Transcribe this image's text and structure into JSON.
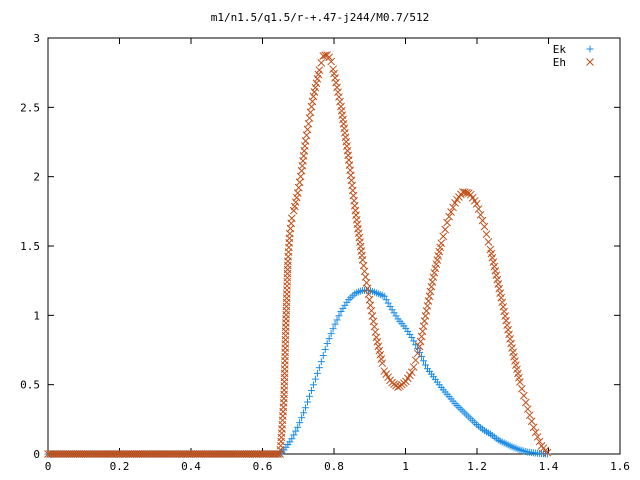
{
  "chart_data": {
    "type": "scatter",
    "title": "m1/n1.5/q1.5/r-+.47-j244/M0.7/512",
    "xlabel": "",
    "ylabel": "",
    "xlim": [
      0,
      1.6
    ],
    "ylim": [
      0,
      3
    ],
    "x_ticks": [
      "0",
      "0.2",
      "0.4",
      "0.6",
      "0.8",
      "1",
      "1.2",
      "1.4",
      "1.6"
    ],
    "y_ticks": [
      "0",
      "0.5",
      "1",
      "1.5",
      "2",
      "2.5",
      "3"
    ],
    "grid": false,
    "legend_position": "top-right",
    "series": [
      {
        "name": "Ek",
        "marker": "plus",
        "color": "#1a8ce6",
        "points": [
          [
            0.0,
            0
          ],
          [
            0.1,
            0
          ],
          [
            0.2,
            0
          ],
          [
            0.3,
            0
          ],
          [
            0.4,
            0
          ],
          [
            0.5,
            0
          ],
          [
            0.6,
            0
          ],
          [
            0.65,
            0
          ],
          [
            0.66,
            0.03
          ],
          [
            0.68,
            0.1
          ],
          [
            0.7,
            0.2
          ],
          [
            0.72,
            0.33
          ],
          [
            0.74,
            0.48
          ],
          [
            0.76,
            0.63
          ],
          [
            0.78,
            0.79
          ],
          [
            0.8,
            0.92
          ],
          [
            0.82,
            1.03
          ],
          [
            0.84,
            1.11
          ],
          [
            0.86,
            1.16
          ],
          [
            0.88,
            1.18
          ],
          [
            0.9,
            1.18
          ],
          [
            0.92,
            1.16
          ],
          [
            0.94,
            1.14
          ],
          [
            0.96,
            1.05
          ],
          [
            0.98,
            0.97
          ],
          [
            1.0,
            0.91
          ],
          [
            1.02,
            0.83
          ],
          [
            1.04,
            0.73
          ],
          [
            1.06,
            0.62
          ],
          [
            1.08,
            0.55
          ],
          [
            1.1,
            0.48
          ],
          [
            1.12,
            0.42
          ],
          [
            1.14,
            0.36
          ],
          [
            1.16,
            0.31
          ],
          [
            1.18,
            0.26
          ],
          [
            1.2,
            0.21
          ],
          [
            1.22,
            0.17
          ],
          [
            1.24,
            0.14
          ],
          [
            1.26,
            0.1
          ],
          [
            1.28,
            0.075
          ],
          [
            1.3,
            0.05
          ],
          [
            1.32,
            0.03
          ],
          [
            1.34,
            0.015
          ],
          [
            1.36,
            0.008
          ],
          [
            1.38,
            0.003
          ],
          [
            1.4,
            0
          ]
        ]
      },
      {
        "name": "Eh",
        "marker": "cross",
        "color": "#c0501a",
        "points": [
          [
            0.0,
            0
          ],
          [
            0.1,
            0
          ],
          [
            0.2,
            0
          ],
          [
            0.3,
            0
          ],
          [
            0.4,
            0
          ],
          [
            0.5,
            0
          ],
          [
            0.6,
            0
          ],
          [
            0.65,
            0
          ],
          [
            0.66,
            0.4
          ],
          [
            0.665,
            0.9
          ],
          [
            0.67,
            1.35
          ],
          [
            0.675,
            1.55
          ],
          [
            0.68,
            1.68
          ],
          [
            0.69,
            1.78
          ],
          [
            0.7,
            1.9
          ],
          [
            0.71,
            2.05
          ],
          [
            0.72,
            2.25
          ],
          [
            0.74,
            2.55
          ],
          [
            0.76,
            2.78
          ],
          [
            0.77,
            2.87
          ],
          [
            0.78,
            2.88
          ],
          [
            0.79,
            2.85
          ],
          [
            0.8,
            2.75
          ],
          [
            0.82,
            2.5
          ],
          [
            0.84,
            2.15
          ],
          [
            0.86,
            1.75
          ],
          [
            0.88,
            1.4
          ],
          [
            0.9,
            1.1
          ],
          [
            0.92,
            0.82
          ],
          [
            0.94,
            0.6
          ],
          [
            0.96,
            0.52
          ],
          [
            0.98,
            0.48
          ],
          [
            1.0,
            0.52
          ],
          [
            1.02,
            0.6
          ],
          [
            1.04,
            0.78
          ],
          [
            1.06,
            1.05
          ],
          [
            1.08,
            1.3
          ],
          [
            1.1,
            1.52
          ],
          [
            1.12,
            1.7
          ],
          [
            1.14,
            1.82
          ],
          [
            1.16,
            1.89
          ],
          [
            1.18,
            1.88
          ],
          [
            1.2,
            1.8
          ],
          [
            1.22,
            1.65
          ],
          [
            1.24,
            1.45
          ],
          [
            1.26,
            1.22
          ],
          [
            1.28,
            0.98
          ],
          [
            1.3,
            0.74
          ],
          [
            1.32,
            0.52
          ],
          [
            1.34,
            0.34
          ],
          [
            1.36,
            0.18
          ],
          [
            1.38,
            0.06
          ],
          [
            1.4,
            0
          ]
        ]
      }
    ]
  }
}
